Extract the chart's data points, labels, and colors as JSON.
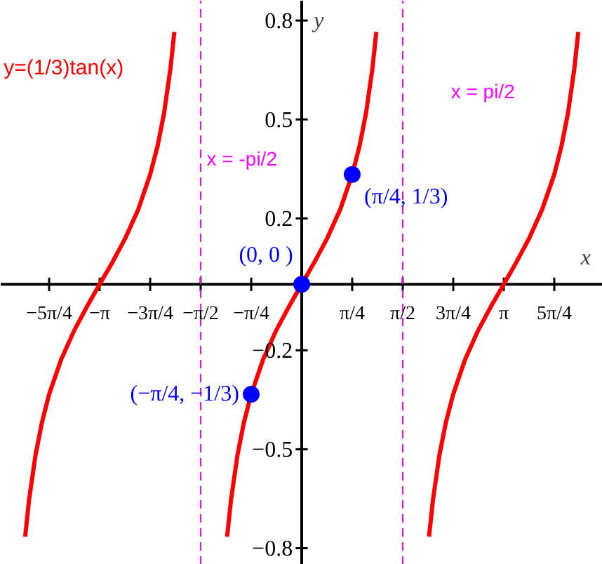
{
  "chart_data": {
    "type": "line",
    "xlabel": "x",
    "ylabel": "y",
    "xlim": [
      -4.68,
      4.68
    ],
    "ylim": [
      -0.85,
      0.86
    ],
    "xticks": [
      {
        "value": -3.927,
        "label": "−5π/4"
      },
      {
        "value": -3.142,
        "label": "−π"
      },
      {
        "value": -2.356,
        "label": "−3π/4"
      },
      {
        "value": -1.571,
        "label": "−π/2"
      },
      {
        "value": -0.785,
        "label": "−π/4"
      },
      {
        "value": 0.785,
        "label": "π/4"
      },
      {
        "value": 1.571,
        "label": "π/2"
      },
      {
        "value": 2.356,
        "label": "3π/4"
      },
      {
        "value": 3.142,
        "label": "π"
      },
      {
        "value": 3.927,
        "label": "5π/4"
      }
    ],
    "yticks": [
      0.8,
      0.5,
      0.2,
      {
        "value": -0.2,
        "label": "−0.2"
      },
      {
        "value": -0.5,
        "label": "−0.5"
      },
      {
        "value": -0.8,
        "label": "−0.8"
      }
    ],
    "grid": false,
    "legend": false,
    "series": [
      {
        "name": "y=(1/3)tan(x)",
        "color": "#ff0000",
        "line_style": "solid",
        "marker": "none",
        "x": [
          -4.3,
          -4.24,
          -4.14,
          -4.04,
          -3.927,
          -3.74,
          -3.54,
          -3.34,
          -3.142,
          -2.94,
          -2.74,
          -2.54,
          -2.356,
          -2.24,
          -2.14,
          -2.04,
          -1.98,
          -1.571,
          -1.16,
          -1.1,
          -1.0,
          -0.9,
          -0.785,
          -0.6,
          -0.4,
          -0.2,
          0,
          0.2,
          0.4,
          0.6,
          0.785,
          0.9,
          1.0,
          1.1,
          1.16,
          1.571,
          1.98,
          2.04,
          2.14,
          2.24,
          2.356,
          2.54,
          2.74,
          2.94,
          3.142,
          3.34,
          3.54,
          3.74,
          3.927,
          4.04,
          4.14,
          4.24,
          4.3
        ],
        "values": [
          -0.765,
          -0.655,
          -0.519,
          -0.42,
          -0.333,
          -0.228,
          -0.141,
          -0.068,
          0,
          0.068,
          0.141,
          0.228,
          0.333,
          0.42,
          0.519,
          0.655,
          0.765,
          null,
          -0.765,
          -0.655,
          -0.519,
          -0.42,
          -0.333,
          -0.228,
          -0.141,
          -0.068,
          0,
          0.068,
          0.141,
          0.228,
          0.333,
          0.42,
          0.519,
          0.655,
          0.765,
          null,
          -0.765,
          -0.655,
          -0.519,
          -0.42,
          -0.333,
          -0.228,
          -0.141,
          -0.068,
          0,
          0.068,
          0.141,
          0.228,
          0.333,
          0.42,
          0.519,
          0.655,
          0.765
        ]
      },
      {
        "type": "scatter",
        "color": "#0000ff",
        "marker": "circle",
        "x": [
          -0.785,
          0,
          0.785
        ],
        "values": [
          -0.333,
          0,
          0.333
        ]
      }
    ],
    "ref_lines": [
      {
        "axis": "x",
        "value": -1.571,
        "label": "x = -pi/2",
        "color": "#ff00ff",
        "line_style": "dashed"
      },
      {
        "axis": "x",
        "value": 1.571,
        "label": "x = pi/2",
        "color": "#ff00ff",
        "line_style": "dashed"
      }
    ],
    "annotations": [
      {
        "text": "(0,  0 )",
        "x": 0,
        "y": 0
      },
      {
        "text": "(π/4, 1/3)",
        "x": 0.785,
        "y": 0.333
      },
      {
        "text": "(−π/4, −1/3)",
        "x": -0.785,
        "y": -0.333
      }
    ]
  }
}
